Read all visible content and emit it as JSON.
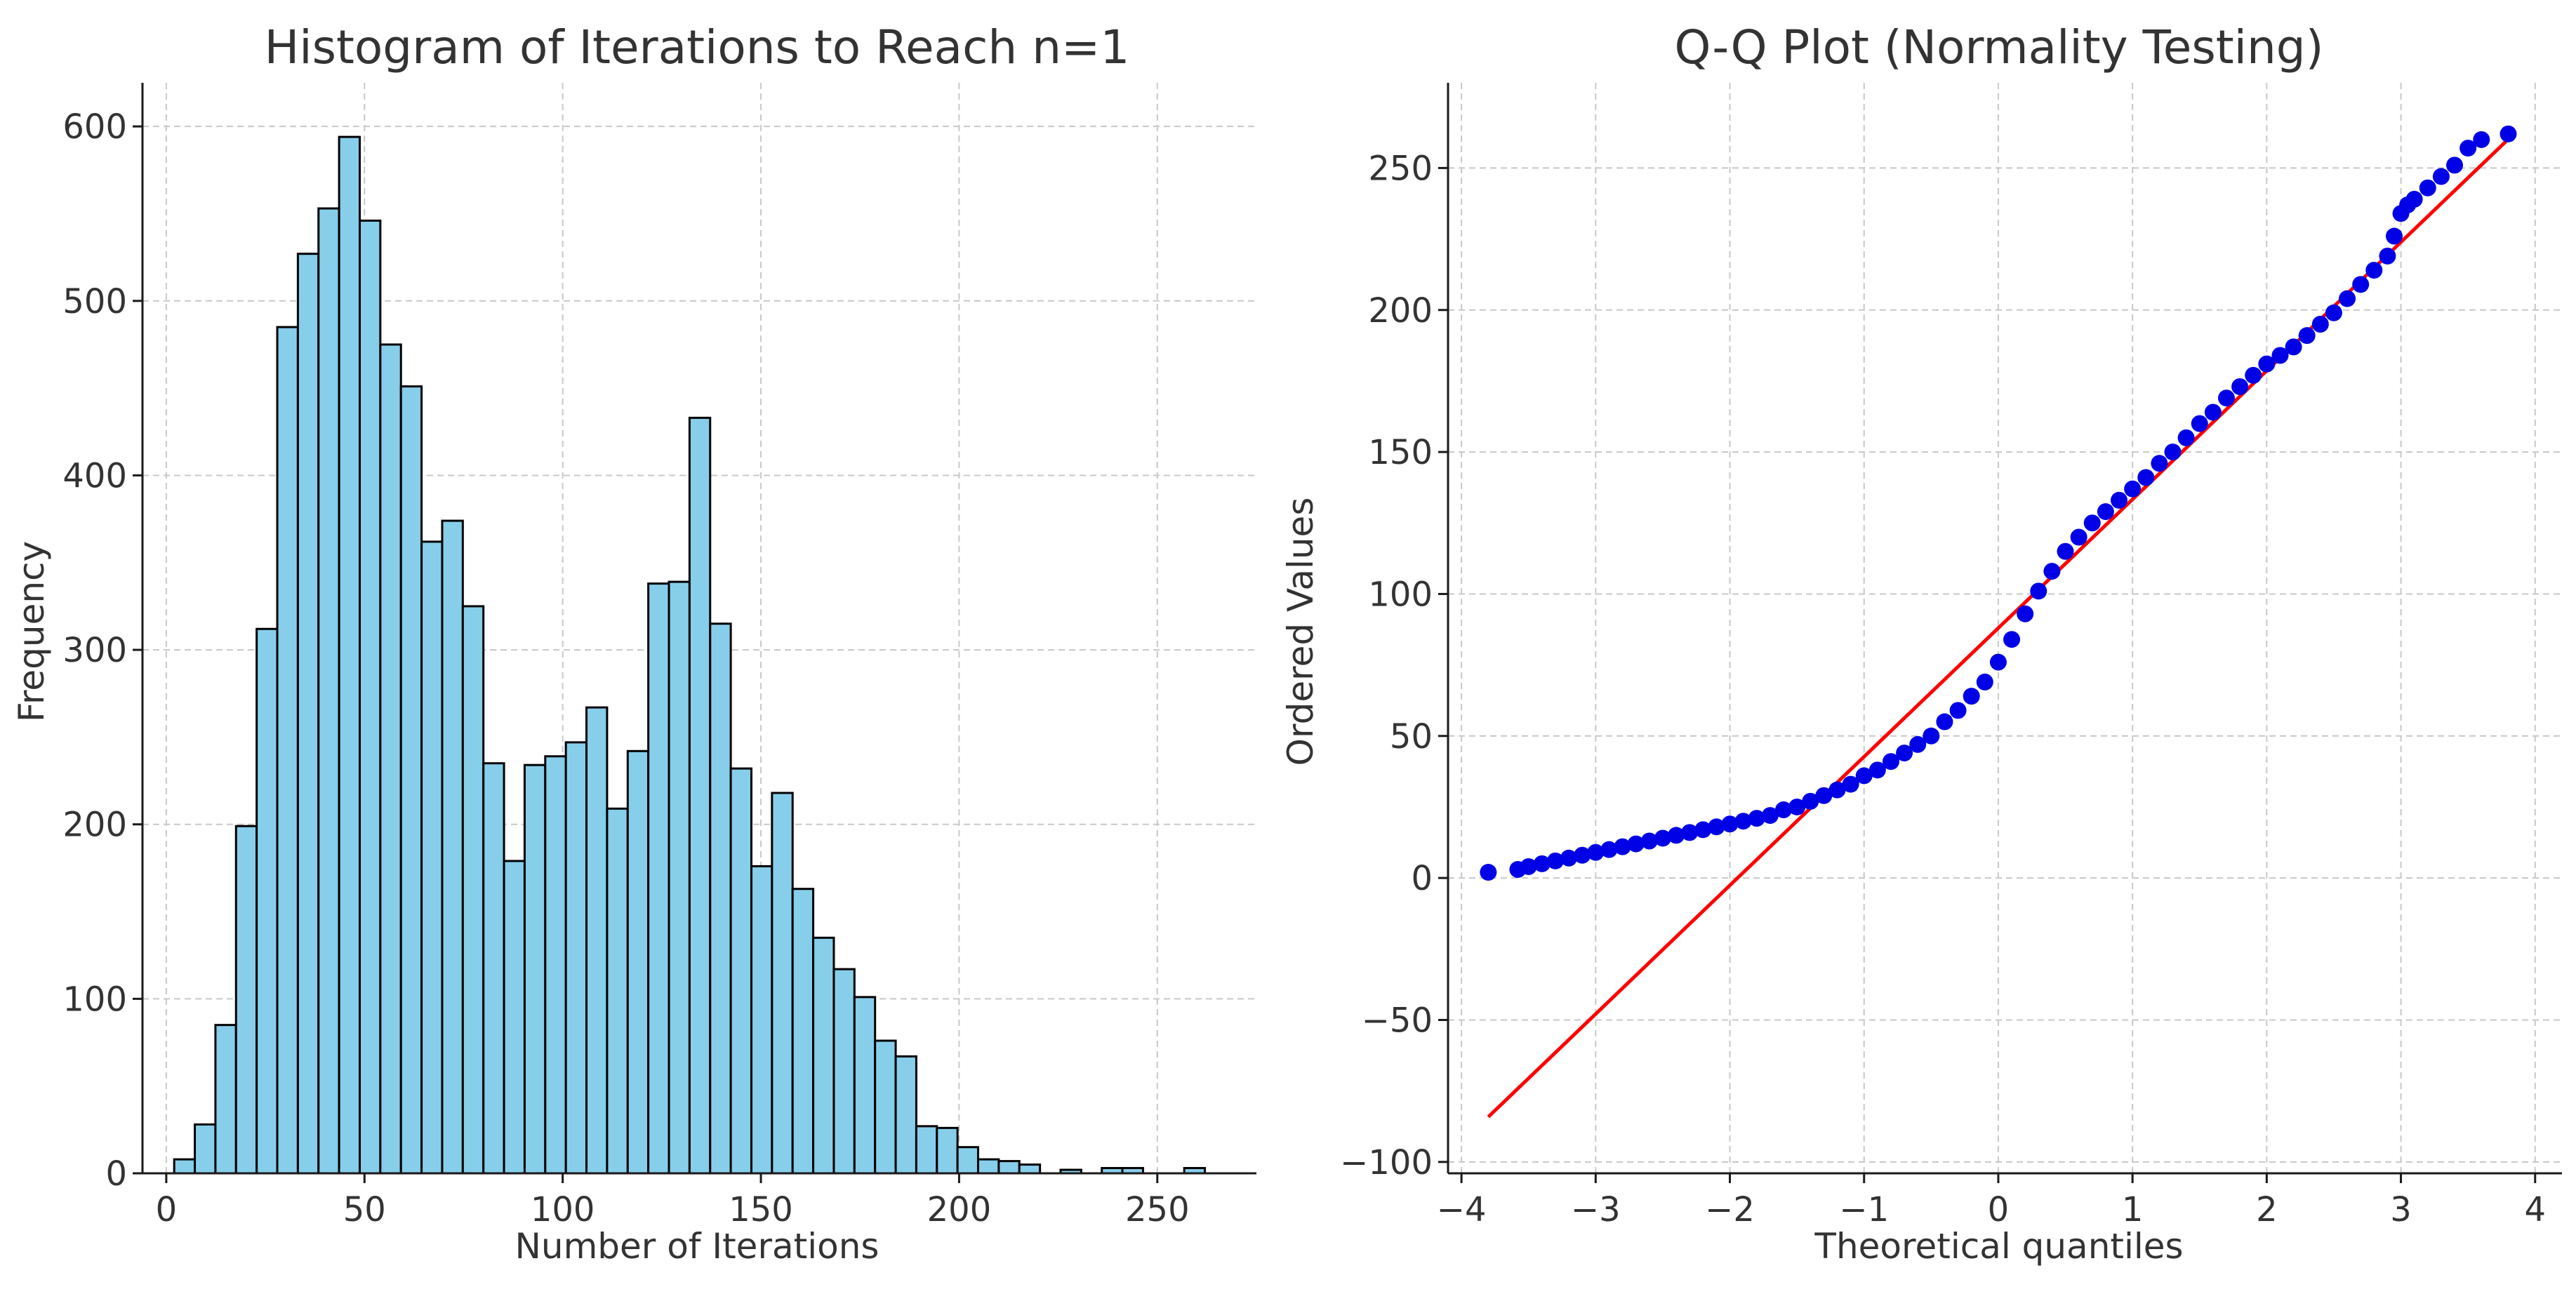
{
  "chart_data": [
    {
      "type": "bar",
      "title": "Histogram of Iterations to Reach n=1",
      "xlabel": "Number of Iterations",
      "ylabel": "Frequency",
      "xlim": [
        -6,
        275
      ],
      "ylim": [
        0,
        625
      ],
      "xticks": [
        0,
        50,
        100,
        150,
        200,
        250
      ],
      "yticks": [
        0,
        100,
        200,
        300,
        400,
        500,
        600
      ],
      "grid": true,
      "bin_start": 2,
      "bin_width": 5.2,
      "values": [
        8,
        28,
        85,
        199,
        312,
        485,
        527,
        553,
        594,
        546,
        475,
        451,
        362,
        374,
        325,
        235,
        179,
        234,
        239,
        247,
        267,
        209,
        242,
        338,
        339,
        433,
        315,
        232,
        176,
        218,
        163,
        135,
        117,
        101,
        76,
        67,
        27,
        26,
        15,
        8,
        7,
        5,
        0,
        2,
        0,
        3,
        3,
        0,
        0,
        3
      ]
    },
    {
      "type": "scatter",
      "title": "Q-Q Plot (Normality Testing)",
      "xlabel": "Theoretical quantiles",
      "ylabel": "Ordered Values",
      "xlim": [
        -4.1,
        4.2
      ],
      "ylim": [
        -104,
        280
      ],
      "xticks": [
        -4,
        -3,
        -2,
        -1,
        0,
        1,
        2,
        3,
        4
      ],
      "yticks": [
        -100,
        -50,
        0,
        50,
        100,
        150,
        200,
        250
      ],
      "grid": true,
      "fit_line": {
        "slope": 45.3,
        "intercept": 88,
        "x_range": [
          -3.8,
          3.8
        ]
      },
      "points": [
        [
          -3.8,
          2
        ],
        [
          -3.58,
          3
        ],
        [
          -3.5,
          4
        ],
        [
          -3.4,
          5
        ],
        [
          -3.3,
          6
        ],
        [
          -3.2,
          7
        ],
        [
          -3.1,
          8
        ],
        [
          -3.0,
          9
        ],
        [
          -2.9,
          10
        ],
        [
          -2.8,
          11
        ],
        [
          -2.7,
          12
        ],
        [
          -2.6,
          13
        ],
        [
          -2.5,
          14
        ],
        [
          -2.4,
          15
        ],
        [
          -2.3,
          16
        ],
        [
          -2.2,
          17
        ],
        [
          -2.1,
          18
        ],
        [
          -2.0,
          19
        ],
        [
          -1.9,
          20
        ],
        [
          -1.8,
          21
        ],
        [
          -1.7,
          22
        ],
        [
          -1.6,
          24
        ],
        [
          -1.5,
          25
        ],
        [
          -1.4,
          27
        ],
        [
          -1.3,
          29
        ],
        [
          -1.2,
          31
        ],
        [
          -1.1,
          33
        ],
        [
          -1.0,
          36
        ],
        [
          -0.9,
          38
        ],
        [
          -0.8,
          41
        ],
        [
          -0.7,
          44
        ],
        [
          -0.6,
          47
        ],
        [
          -0.5,
          50
        ],
        [
          -0.4,
          55
        ],
        [
          -0.3,
          59
        ],
        [
          -0.2,
          64
        ],
        [
          -0.1,
          69
        ],
        [
          0.0,
          76
        ],
        [
          0.1,
          84
        ],
        [
          0.2,
          93
        ],
        [
          0.3,
          101
        ],
        [
          0.4,
          108
        ],
        [
          0.5,
          115
        ],
        [
          0.6,
          120
        ],
        [
          0.7,
          125
        ],
        [
          0.8,
          129
        ],
        [
          0.9,
          133
        ],
        [
          1.0,
          137
        ],
        [
          1.1,
          141
        ],
        [
          1.2,
          146
        ],
        [
          1.3,
          150
        ],
        [
          1.4,
          155
        ],
        [
          1.5,
          160
        ],
        [
          1.6,
          164
        ],
        [
          1.7,
          169
        ],
        [
          1.8,
          173
        ],
        [
          1.9,
          177
        ],
        [
          2.0,
          181
        ],
        [
          2.1,
          184
        ],
        [
          2.2,
          187
        ],
        [
          2.3,
          191
        ],
        [
          2.4,
          195
        ],
        [
          2.5,
          199
        ],
        [
          2.6,
          204
        ],
        [
          2.7,
          209
        ],
        [
          2.8,
          214
        ],
        [
          2.9,
          219
        ],
        [
          2.95,
          226
        ],
        [
          3.0,
          234
        ],
        [
          3.05,
          237
        ],
        [
          3.1,
          239
        ],
        [
          3.2,
          243
        ],
        [
          3.3,
          247
        ],
        [
          3.4,
          251
        ],
        [
          3.5,
          257
        ],
        [
          3.6,
          260
        ],
        [
          3.8,
          262
        ]
      ]
    }
  ]
}
